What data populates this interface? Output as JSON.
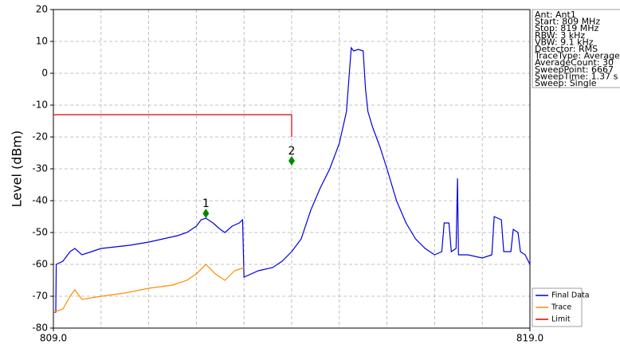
{
  "chart_data": {
    "type": "line",
    "ylabel": "Level (dBm)",
    "xlim": [
      809,
      819
    ],
    "ylim": [
      -80,
      20
    ],
    "xticks": [
      {
        "value": 809,
        "label": "809.0"
      },
      {
        "value": 819,
        "label": "819.0"
      }
    ],
    "xgrid": [
      810,
      811,
      812,
      813,
      814,
      815,
      816,
      817,
      818
    ],
    "yticks": [
      20,
      10,
      0,
      -10,
      -20,
      -30,
      -40,
      -50,
      -60,
      -70,
      -80
    ],
    "grid": true,
    "legend": "lower right",
    "series": [
      {
        "name": "Final Data",
        "color": "#0000dd",
        "x": [
          809.0,
          809.05,
          809.06,
          809.2,
          809.35,
          809.45,
          809.6,
          809.8,
          810.0,
          810.3,
          810.6,
          811.0,
          811.3,
          811.6,
          811.8,
          812.0,
          812.1,
          812.2,
          812.35,
          812.5,
          812.6,
          812.75,
          812.9,
          812.97,
          813.0,
          813.3,
          813.6,
          813.8,
          814.0,
          814.2,
          814.4,
          814.6,
          814.8,
          815.0,
          815.15,
          815.25,
          815.3,
          815.4,
          815.5,
          815.55,
          815.6,
          815.7,
          815.85,
          816.0,
          816.2,
          816.4,
          816.6,
          816.8,
          817.0,
          817.15,
          817.2,
          817.3,
          817.35,
          817.45,
          817.48,
          817.5,
          817.7,
          818.0,
          818.2,
          818.25,
          818.4,
          818.45,
          818.6,
          818.65,
          818.75,
          818.8,
          818.9,
          819.0
        ],
        "values": [
          -75,
          -75,
          -60,
          -59,
          -56,
          -55,
          -57,
          -56,
          -55,
          -54.5,
          -54,
          -53,
          -52,
          -51,
          -50,
          -48,
          -46,
          -45.5,
          -47,
          -49,
          -50,
          -48,
          -47,
          -46,
          -64,
          -62,
          -61,
          -59,
          -56,
          -52,
          -43,
          -36,
          -30,
          -22,
          -12,
          8,
          7,
          7.5,
          7,
          -5,
          -12,
          -17,
          -23,
          -30,
          -40,
          -47,
          -52,
          -55,
          -57,
          -56,
          -47,
          -47,
          -56,
          -55,
          -33,
          -57,
          -57,
          -58,
          -57,
          -45,
          -46,
          -56,
          -56,
          -49,
          -50,
          -56,
          -57,
          -60
        ]
      },
      {
        "name": "Trace",
        "color": "#ff8c00",
        "x": [
          809.0,
          809.2,
          809.35,
          809.45,
          809.6,
          810.0,
          810.5,
          811.0,
          811.5,
          811.8,
          812.0,
          812.2,
          812.4,
          812.6,
          812.8,
          813.0
        ],
        "values": [
          -75,
          -74,
          -70,
          -68,
          -71,
          -70,
          -69,
          -67.5,
          -66.5,
          -65,
          -63,
          -60,
          -63,
          -65,
          -62,
          -61
        ]
      },
      {
        "name": "Limit",
        "color": "#dd0000",
        "x": [
          809.0,
          814.0,
          814.0
        ],
        "values": [
          -13,
          -13,
          -20
        ]
      }
    ],
    "markers": [
      {
        "label": "1",
        "x": 812.2,
        "value": -44,
        "color": "#008800"
      },
      {
        "label": "2",
        "x": 814.0,
        "value": -27.5,
        "color": "#008800"
      }
    ],
    "info": [
      "Ant: Ant1",
      "Start: 809 MHz",
      "Stop: 819 MHz",
      "RBW: 3 kHz",
      "VBW: 9.1 kHz",
      "Detector: RMS",
      "TraceType: Average",
      "AverageCount: 30",
      "SweepPoint: 6667",
      "SweepTime: 1.37 s",
      "Sweep: Single"
    ]
  }
}
